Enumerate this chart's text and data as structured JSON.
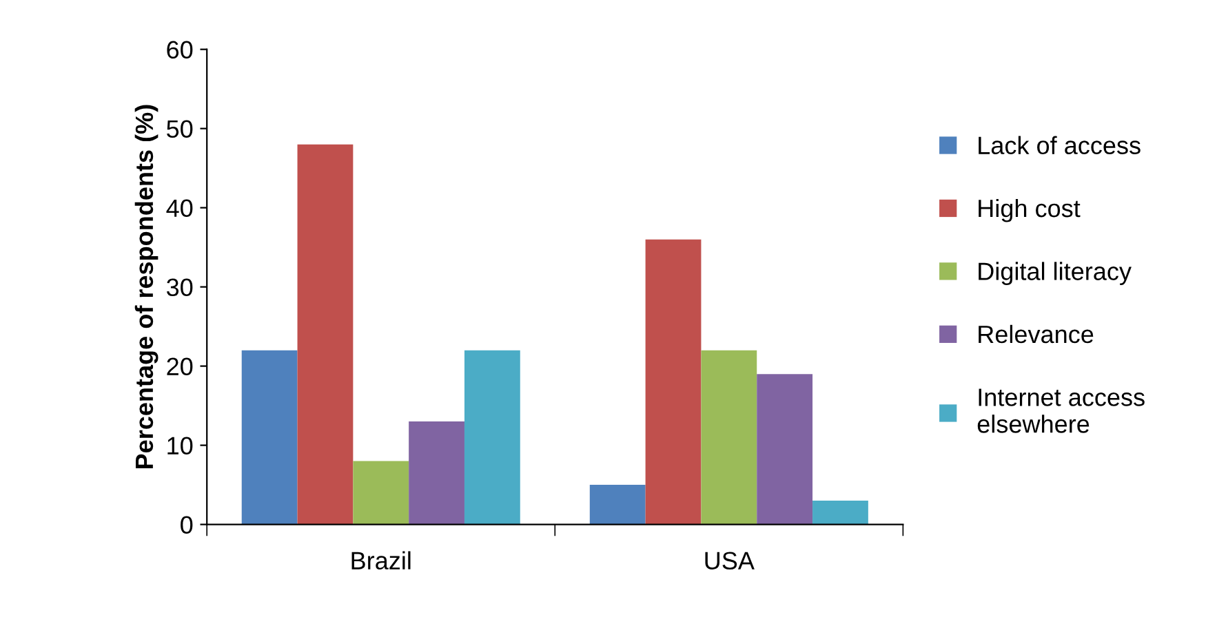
{
  "chart_data": {
    "type": "bar",
    "ylabel": "Percentage of respondents (%)",
    "categories": [
      "Brazil",
      "USA"
    ],
    "series": [
      {
        "name": "Lack of access",
        "color": "#4f81bd",
        "values": [
          22,
          5
        ]
      },
      {
        "name": "High cost",
        "color": "#c0504d",
        "values": [
          48,
          36
        ]
      },
      {
        "name": "Digital literacy",
        "color": "#9bbb59",
        "values": [
          8,
          22
        ]
      },
      {
        "name": "Relevance",
        "color": "#8064a2",
        "values": [
          13,
          19
        ]
      },
      {
        "name": "Internet access elsewhere",
        "color": "#4bacc6",
        "values": [
          22,
          3
        ]
      }
    ],
    "ylim": [
      0,
      60
    ],
    "yticks": [
      0,
      10,
      20,
      30,
      40,
      50,
      60
    ],
    "grid": false,
    "legend": "right"
  }
}
